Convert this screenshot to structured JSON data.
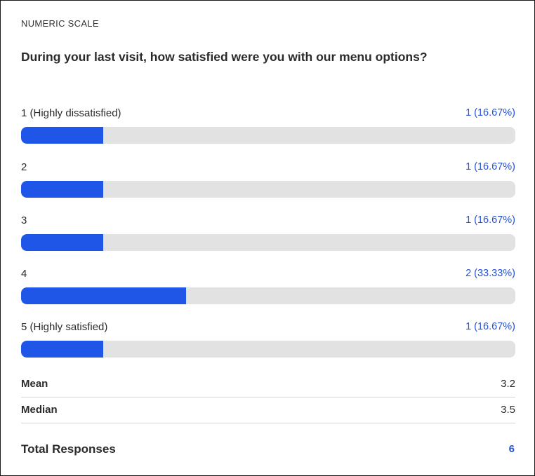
{
  "type_label": "NUMERIC SCALE",
  "question": "During your last visit, how satisfied were you with our menu options?",
  "options": [
    {
      "label": "1 (Highly dissatisfied)",
      "value_text": "1 (16.67%)",
      "fraction": 0.1667
    },
    {
      "label": "2",
      "value_text": "1 (16.67%)",
      "fraction": 0.1667
    },
    {
      "label": "3",
      "value_text": "1 (16.67%)",
      "fraction": 0.1667
    },
    {
      "label": "4",
      "value_text": "2 (33.33%)",
      "fraction": 0.3333
    },
    {
      "label": "5 (Highly satisfied)",
      "value_text": "1 (16.67%)",
      "fraction": 0.1667
    }
  ],
  "stats": {
    "mean_label": "Mean",
    "mean_value": "3.2",
    "median_label": "Median",
    "median_value": "3.5"
  },
  "total": {
    "label": "Total Responses",
    "value": "6"
  },
  "colors": {
    "bar_fill": "#1f56e8",
    "bar_track": "#e2e2e2",
    "accent_text": "#2452d6"
  }
}
